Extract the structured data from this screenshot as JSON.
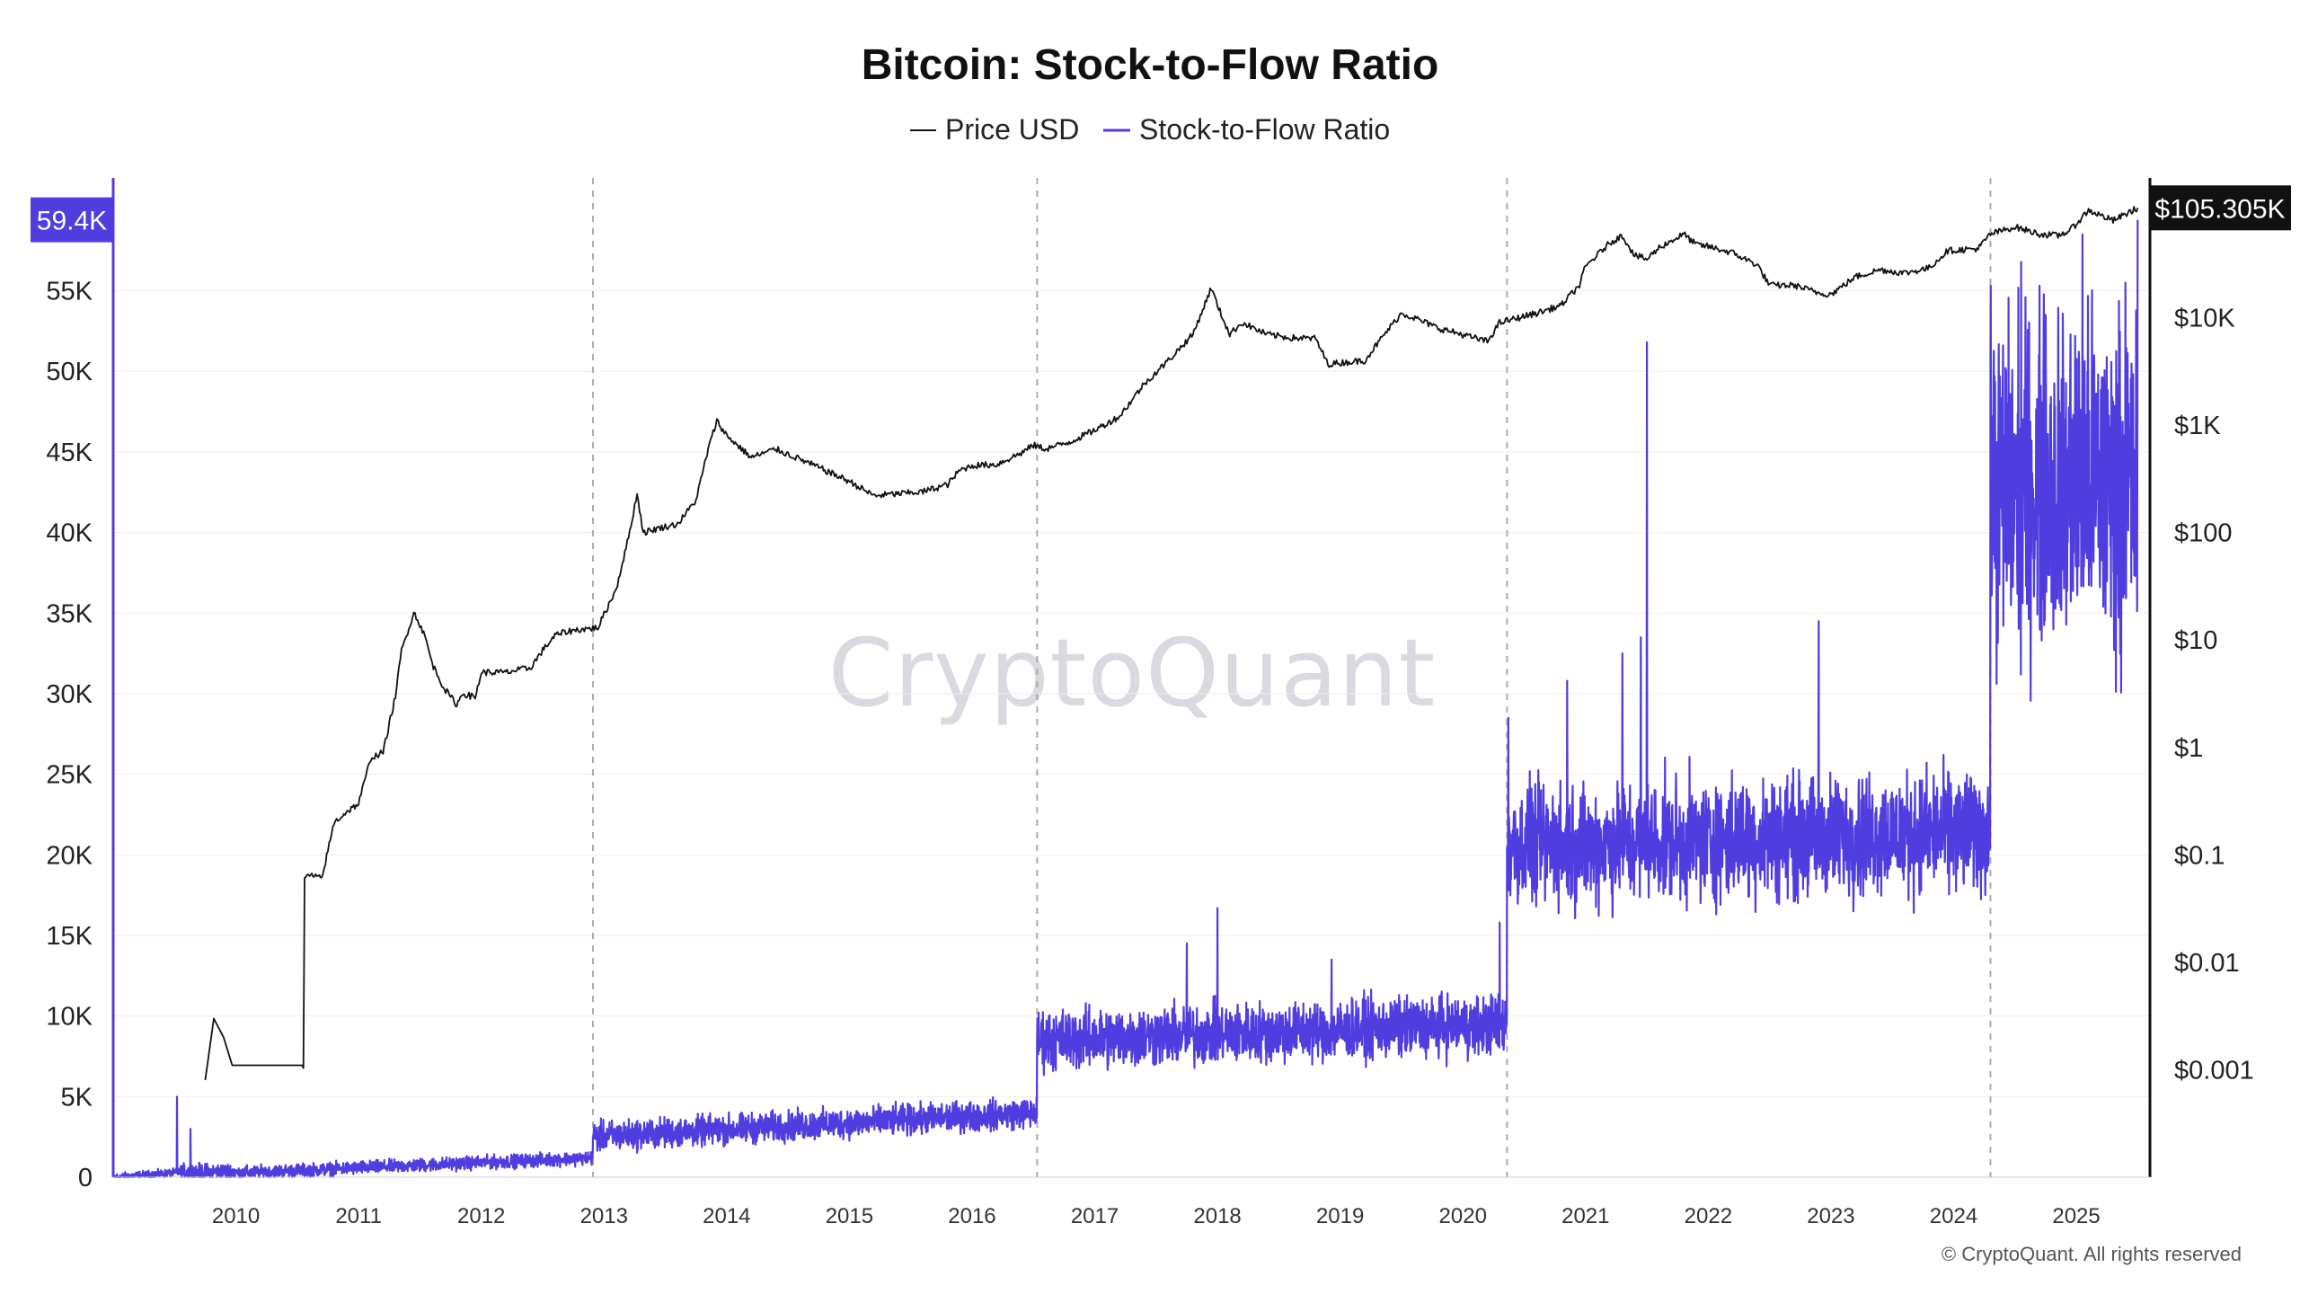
{
  "chart_data": {
    "type": "line",
    "title": "Bitcoin: Stock-to-Flow Ratio",
    "legend_placement": "top-center",
    "grid": true,
    "watermark": "CryptoQuant",
    "copyright": "© CryptoQuant. All rights reserved",
    "colors": {
      "price": "#111111",
      "s2f": "#4f3de0",
      "axis_right": "#111111"
    },
    "x_ticks": [
      "2010",
      "2011",
      "2012",
      "2013",
      "2014",
      "2015",
      "2016",
      "2017",
      "2018",
      "2019",
      "2020",
      "2021",
      "2022",
      "2023",
      "2024",
      "2025"
    ],
    "x_range": [
      2009.0,
      2025.6
    ],
    "halvings": [
      2012.91,
      2016.53,
      2020.36,
      2024.3
    ],
    "y_left": {
      "ticks": [
        "0",
        "5K",
        "10K",
        "15K",
        "20K",
        "25K",
        "30K",
        "35K",
        "40K",
        "45K",
        "50K",
        "55K"
      ],
      "tick_values": [
        0,
        5000,
        10000,
        15000,
        20000,
        25000,
        30000,
        35000,
        40000,
        45000,
        50000,
        55000
      ],
      "range": [
        0,
        62000
      ],
      "current_label": "59.4K",
      "current_value": 59400
    },
    "y_right": {
      "scale": "log",
      "ticks": [
        "$0.001",
        "$0.01",
        "$0.1",
        "$1",
        "$10",
        "$100",
        "$1K",
        "$10K"
      ],
      "tick_values": [
        0.001,
        0.01,
        0.1,
        1,
        10,
        100,
        1000,
        10000
      ],
      "range": [
        0.0001,
        200000
      ],
      "current_label": "$105.305K",
      "current_value": 105305
    },
    "series": [
      {
        "name": "Price USD",
        "axis": "right",
        "x": [
          2009.75,
          2009.82,
          2009.9,
          2009.97,
          2010.55,
          2010.56,
          2010.6,
          2010.7,
          2010.8,
          2010.9,
          2011.0,
          2011.1,
          2011.2,
          2011.3,
          2011.35,
          2011.45,
          2011.5,
          2011.55,
          2011.6,
          2011.7,
          2011.8,
          2011.85,
          2011.95,
          2012.0,
          2012.2,
          2012.4,
          2012.5,
          2012.6,
          2012.7,
          2012.8,
          2012.95,
          2013.1,
          2013.2,
          2013.27,
          2013.32,
          2013.45,
          2013.6,
          2013.75,
          2013.85,
          2013.92,
          2014.0,
          2014.2,
          2014.4,
          2014.6,
          2014.8,
          2015.0,
          2015.2,
          2015.4,
          2015.6,
          2015.8,
          2015.9,
          2016.0,
          2016.2,
          2016.4,
          2016.5,
          2016.6,
          2016.8,
          2017.0,
          2017.2,
          2017.4,
          2017.6,
          2017.8,
          2017.95,
          2018.0,
          2018.1,
          2018.2,
          2018.4,
          2018.6,
          2018.8,
          2018.9,
          2019.0,
          2019.2,
          2019.4,
          2019.5,
          2019.6,
          2019.8,
          2019.95,
          2020.2,
          2020.3,
          2020.6,
          2020.8,
          2020.95,
          2021.0,
          2021.2,
          2021.3,
          2021.4,
          2021.5,
          2021.6,
          2021.8,
          2021.9,
          2022.0,
          2022.2,
          2022.4,
          2022.5,
          2022.7,
          2022.9,
          2023.0,
          2023.2,
          2023.4,
          2023.6,
          2023.8,
          2023.95,
          2024.2,
          2024.3,
          2024.5,
          2024.7,
          2024.85,
          2024.95,
          2025.1,
          2025.3,
          2025.5
        ],
        "y": [
          0.0008,
          0.003,
          0.002,
          0.0011,
          0.0011,
          0.06,
          0.065,
          0.06,
          0.2,
          0.25,
          0.3,
          0.8,
          0.9,
          3,
          8,
          18,
          14,
          10,
          6,
          3.5,
          2.5,
          3.2,
          2.9,
          5,
          5,
          5.5,
          8,
          11,
          12,
          12.5,
          13,
          30,
          90,
          230,
          100,
          110,
          120,
          200,
          600,
          1100,
          800,
          500,
          600,
          480,
          380,
          300,
          220,
          230,
          240,
          280,
          380,
          420,
          430,
          550,
          650,
          600,
          700,
          900,
          1200,
          2400,
          4000,
          7000,
          19000,
          13000,
          7000,
          9000,
          7000,
          6500,
          6400,
          3700,
          3800,
          4000,
          8000,
          11000,
          10000,
          8000,
          7200,
          6000,
          9000,
          11000,
          13000,
          20000,
          30000,
          50000,
          58000,
          38000,
          35000,
          45000,
          60000,
          48000,
          46000,
          40000,
          31000,
          20000,
          20000,
          17000,
          16500,
          24000,
          28000,
          26000,
          29000,
          42000,
          44000,
          60000,
          70000,
          60000,
          58000,
          65000,
          100000,
          80000,
          105305
        ]
      },
      {
        "name": "Stock-to-Flow Ratio",
        "axis": "left",
        "regimes": [
          {
            "x0": 2009.0,
            "x1": 2009.55,
            "y0": 0,
            "y1": 300,
            "spread": 120
          },
          {
            "x0": 2009.55,
            "x1": 2010.0,
            "y0": 300,
            "y1": 350,
            "spread": 250
          },
          {
            "x0": 2010.0,
            "x1": 2012.91,
            "y0": 250,
            "y1": 1200,
            "spread": 200
          },
          {
            "x0": 2012.91,
            "x1": 2016.53,
            "y0": 2500,
            "y1": 4000,
            "spread": 450
          },
          {
            "x0": 2016.53,
            "x1": 2020.36,
            "y0": 8500,
            "y1": 9500,
            "spread": 900
          },
          {
            "x0": 2020.36,
            "x1": 2024.3,
            "y0": 20500,
            "y1": 21500,
            "spread": 1800
          },
          {
            "x0": 2024.3,
            "x1": 2025.5,
            "y0": 43000,
            "y1": 43000,
            "spread": 5000
          }
        ],
        "spikes": [
          {
            "x": 2009.52,
            "y": 5000
          },
          {
            "x": 2009.63,
            "y": 3000
          },
          {
            "x": 2018.0,
            "y": 16700
          },
          {
            "x": 2017.75,
            "y": 14500
          },
          {
            "x": 2018.93,
            "y": 13500
          },
          {
            "x": 2020.3,
            "y": 15800
          },
          {
            "x": 2020.37,
            "y": 28500
          },
          {
            "x": 2020.85,
            "y": 30800
          },
          {
            "x": 2021.3,
            "y": 32500
          },
          {
            "x": 2021.5,
            "y": 51800
          },
          {
            "x": 2021.45,
            "y": 33500
          },
          {
            "x": 2022.9,
            "y": 34500
          },
          {
            "x": 2024.3,
            "y": 51500
          },
          {
            "x": 2024.55,
            "y": 56800
          },
          {
            "x": 2024.75,
            "y": 53500
          },
          {
            "x": 2025.05,
            "y": 58500
          },
          {
            "x": 2025.4,
            "y": 55500
          },
          {
            "x": 2025.5,
            "y": 59400
          }
        ]
      }
    ]
  }
}
